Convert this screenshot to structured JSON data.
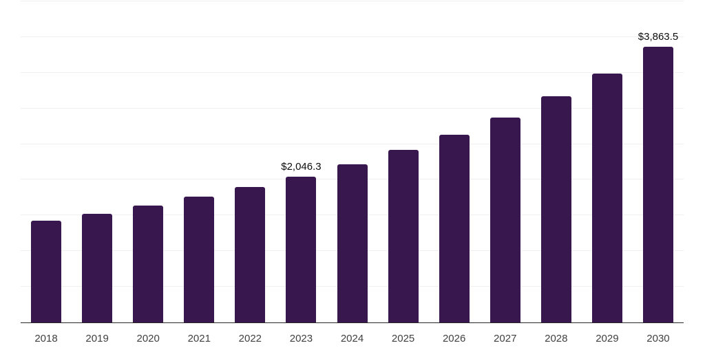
{
  "chart_data": {
    "type": "bar",
    "title": "",
    "xlabel": "",
    "ylabel": "",
    "categories": [
      "2018",
      "2019",
      "2020",
      "2021",
      "2022",
      "2023",
      "2024",
      "2025",
      "2026",
      "2027",
      "2028",
      "2029",
      "2030"
    ],
    "values": [
      1430,
      1525,
      1638,
      1759,
      1895,
      2046.3,
      2216,
      2415,
      2630,
      2874,
      3170,
      3493,
      3863.5
    ],
    "value_labels": [
      "",
      "",
      "",
      "",
      "",
      "$2,046.3",
      "",
      "",
      "",
      "",
      "",
      "",
      "$3,863.5"
    ],
    "ylim": [
      0,
      4500
    ],
    "grid_step": 500,
    "grid": true,
    "legend": false,
    "y_tick_labels_shown": false,
    "colors": {
      "bar": "#38164e",
      "value_label": "#0d0d0d",
      "axis_label": "#404040",
      "gridline": "#f0f0f0",
      "axis_line": "#262626",
      "background": "#ffffff"
    }
  }
}
